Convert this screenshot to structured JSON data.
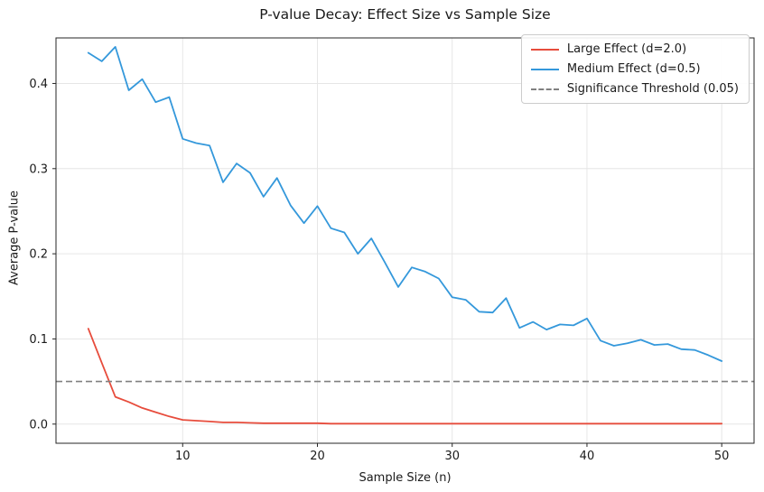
{
  "figure": {
    "title": "P-value Decay: Effect Size vs Sample Size"
  },
  "legend": {
    "position": "upper right",
    "items": [
      {
        "label": "Large Effect (d=2.0)",
        "color": "#e74c3c",
        "dash": false
      },
      {
        "label": "Medium Effect (d=0.5)",
        "color": "#3498db",
        "dash": false
      },
      {
        "label": "Significance Threshold (0.05)",
        "color": "#808080",
        "dash": true
      }
    ]
  },
  "chart_data": {
    "type": "line",
    "title": "P-value Decay: Effect Size vs Sample Size",
    "xlabel": "Sample Size (n)",
    "ylabel": "Average P-value",
    "grid": true,
    "legend_position": "upper right",
    "xlim": [
      0.6,
      52.4
    ],
    "ylim": [
      -0.0225,
      0.4535
    ],
    "xticks": [
      10,
      20,
      30,
      40,
      50
    ],
    "xtick_labels": [
      "10",
      "20",
      "30",
      "40",
      "50"
    ],
    "yticks": [
      0.0,
      0.1,
      0.2,
      0.3,
      0.4
    ],
    "ytick_labels": [
      "0.0",
      "0.1",
      "0.2",
      "0.3",
      "0.4"
    ],
    "x": [
      3,
      4,
      5,
      6,
      7,
      8,
      9,
      10,
      11,
      12,
      13,
      14,
      15,
      16,
      17,
      18,
      19,
      20,
      21,
      22,
      23,
      24,
      25,
      26,
      27,
      28,
      29,
      30,
      31,
      32,
      33,
      34,
      35,
      36,
      37,
      38,
      39,
      40,
      41,
      42,
      43,
      44,
      45,
      46,
      47,
      48,
      49,
      50
    ],
    "series": [
      {
        "name": "Large Effect (d=2.0)",
        "color": "#e74c3c",
        "style": "solid",
        "values": [
          0.112,
          0.072,
          0.032,
          0.026,
          0.019,
          0.014,
          0.009,
          0.005,
          0.004,
          0.003,
          0.002,
          0.002,
          0.0015,
          0.001,
          0.001,
          0.001,
          0.001,
          0.001,
          0.0005,
          0.0005,
          0.0005,
          0.0005,
          0.0005,
          0.0005,
          0.0005,
          0.0005,
          0.0005,
          0.0005,
          0.0005,
          0.0005,
          0.0005,
          0.0005,
          0.0005,
          0.0005,
          0.0005,
          0.0005,
          0.0005,
          0.0005,
          0.0005,
          0.0005,
          0.0005,
          0.0005,
          0.0005,
          0.0005,
          0.0005,
          0.0005,
          0.0005,
          0.0005
        ]
      },
      {
        "name": "Medium Effect (d=0.5)",
        "color": "#3498db",
        "style": "solid",
        "values": [
          0.436,
          0.426,
          0.443,
          0.392,
          0.405,
          0.378,
          0.384,
          0.335,
          0.33,
          0.327,
          0.284,
          0.306,
          0.295,
          0.267,
          0.289,
          0.257,
          0.236,
          0.256,
          0.23,
          0.225,
          0.2,
          0.218,
          0.19,
          0.161,
          0.184,
          0.179,
          0.171,
          0.149,
          0.146,
          0.132,
          0.131,
          0.148,
          0.113,
          0.12,
          0.111,
          0.117,
          0.116,
          0.124,
          0.098,
          0.092,
          0.095,
          0.099,
          0.093,
          0.094,
          0.088,
          0.087,
          0.081,
          0.074
        ]
      },
      {
        "name": "Significance Threshold (0.05)",
        "color": "#808080",
        "style": "dashed",
        "constant": 0.05
      }
    ],
    "colors": {
      "grid": "#e6e6e6",
      "spine": "#262626",
      "tick_text": "#1a1a1a"
    }
  }
}
